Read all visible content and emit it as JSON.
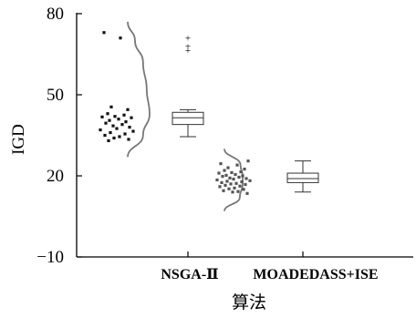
{
  "chart_data": {
    "type": "raincloud",
    "title": "",
    "xlabel": "算法",
    "ylabel": "IGD",
    "ylim": [
      -10,
      80
    ],
    "yticks": [
      -10,
      20,
      50,
      80
    ],
    "ytick_labels": [
      "−10",
      "20",
      "50",
      "80"
    ],
    "grid": false,
    "categories": [
      "NSGA-Ⅱ",
      "MOADEDASS+ISE"
    ],
    "series": [
      {
        "category": "NSGA-Ⅱ",
        "point_color": "#111111",
        "points": [
          73,
          71,
          45.5,
          44.5,
          43,
          42.5,
          42,
          41.8,
          41.5,
          41,
          40.5,
          40,
          39.5,
          39,
          38.5,
          38,
          37.5,
          37,
          36.5,
          36,
          35.5,
          35,
          34.5,
          34,
          33.5,
          33
        ],
        "density": [
          [
            27,
            0
          ],
          [
            35,
            0.42
          ],
          [
            43,
            0.6
          ],
          [
            52,
            0.52
          ],
          [
            62,
            0.42
          ],
          [
            70,
            0.2
          ],
          [
            77,
            0
          ]
        ],
        "box": {
          "whisker_low": 34.5,
          "q1": 39,
          "median": 41.5,
          "q3": 43.5,
          "whisker_high": 44.5
        },
        "outliers": [
          71,
          68,
          66.5
        ]
      },
      {
        "category": "MOADEDASS+ISE",
        "point_color": "#555555",
        "points": [
          25.5,
          24.5,
          24,
          23,
          22.5,
          22,
          21.5,
          21.2,
          21,
          20.5,
          20.2,
          20,
          19.8,
          19.5,
          19.2,
          19,
          18.8,
          18.5,
          18.2,
          18,
          17.8,
          17.5,
          17.2,
          17,
          16.8,
          16.5,
          16.2,
          16,
          15.5,
          15.2,
          15,
          14.5,
          14.2,
          14,
          13.5
        ],
        "density": [
          [
            7,
            0
          ],
          [
            12,
            0.42
          ],
          [
            17,
            0.5
          ],
          [
            20,
            0.5
          ],
          [
            24,
            0.44
          ],
          [
            30,
            0
          ]
        ],
        "box": {
          "whisker_low": 14,
          "q1": 17.5,
          "median": 19,
          "q3": 21,
          "whisker_high": 25.5
        },
        "outliers": []
      }
    ]
  }
}
